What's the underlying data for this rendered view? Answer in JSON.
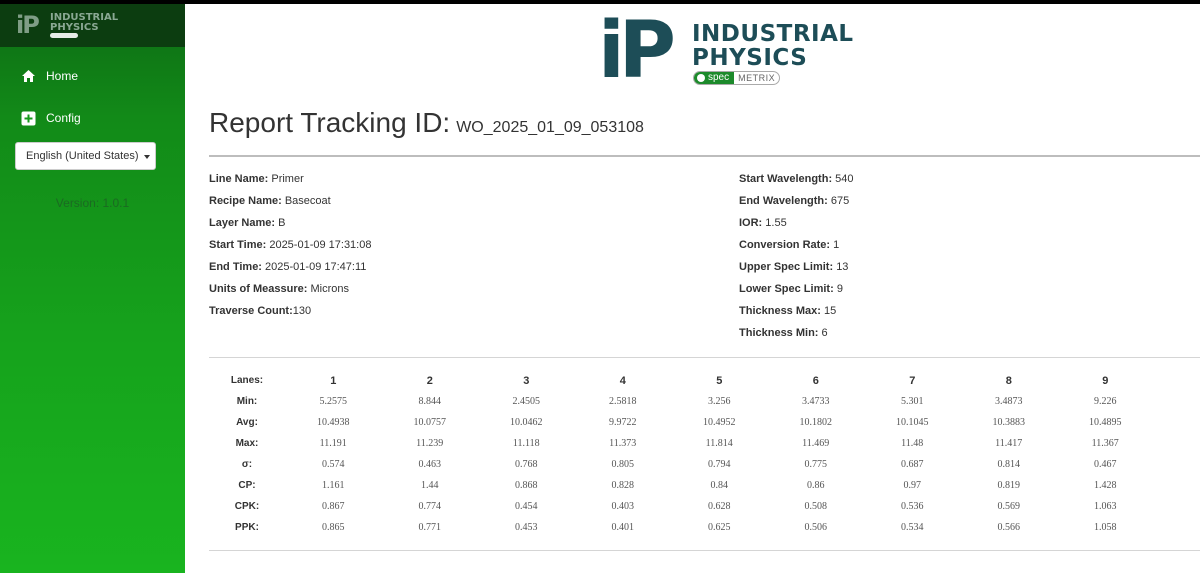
{
  "sidebar": {
    "logo_mark": "iP",
    "logo_line1": "INDUSTRIAL",
    "logo_line2": "PHYSICS",
    "nav": [
      {
        "label": "Home",
        "icon": "home-icon"
      },
      {
        "label": "Config",
        "icon": "plus-square-icon"
      }
    ],
    "language": "English (United States)",
    "version": "Version: 1.0.1"
  },
  "brand": {
    "mark": "iP",
    "line1": "INDUSTRIAL",
    "line2": "PHYSICS",
    "spec_a": "spec",
    "spec_b": "METRIX"
  },
  "report": {
    "title_label": "Report Tracking ID:",
    "tracking_id": "WO_2025_01_09_053108"
  },
  "info_left": [
    {
      "label": "Line Name:",
      "value": "Primer"
    },
    {
      "label": "Recipe Name:",
      "value": "Basecoat"
    },
    {
      "label": "Layer Name:",
      "value": "B"
    },
    {
      "label": "Start Time:",
      "value": "2025-01-09 17:31:08"
    },
    {
      "label": "End Time:",
      "value": "2025-01-09 17:47:11"
    },
    {
      "label": "Units of Meassure:",
      "value": "Microns"
    },
    {
      "label": "Traverse Count:",
      "value": "130"
    }
  ],
  "info_right": [
    {
      "label": "Start Wavelength:",
      "value": "540"
    },
    {
      "label": "End Wavelength:",
      "value": "675"
    },
    {
      "label": "IOR:",
      "value": "1.55"
    },
    {
      "label": "Conversion Rate:",
      "value": "1"
    },
    {
      "label": "Upper Spec Limit:",
      "value": "13"
    },
    {
      "label": "Lower Spec Limit:",
      "value": "9"
    },
    {
      "label": "Thickness Max:",
      "value": "15"
    },
    {
      "label": "Thickness Min:",
      "value": "6"
    }
  ],
  "stats": {
    "lanes_label": "Lanes:",
    "lanes": [
      "1",
      "2",
      "3",
      "4",
      "5",
      "6",
      "7",
      "8",
      "9"
    ],
    "rows": [
      {
        "label": "Min:",
        "values": [
          "5.2575",
          "8.844",
          "2.4505",
          "2.5818",
          "3.256",
          "3.4733",
          "5.301",
          "3.4873",
          "9.226"
        ]
      },
      {
        "label": "Avg:",
        "values": [
          "10.4938",
          "10.0757",
          "10.0462",
          "9.9722",
          "10.4952",
          "10.1802",
          "10.1045",
          "10.3883",
          "10.4895"
        ]
      },
      {
        "label": "Max:",
        "values": [
          "11.191",
          "11.239",
          "11.118",
          "11.373",
          "11.814",
          "11.469",
          "11.48",
          "11.417",
          "11.367"
        ]
      },
      {
        "label": "σ:",
        "values": [
          "0.574",
          "0.463",
          "0.768",
          "0.805",
          "0.794",
          "0.775",
          "0.687",
          "0.814",
          "0.467"
        ]
      },
      {
        "label": "CP:",
        "values": [
          "1.161",
          "1.44",
          "0.868",
          "0.828",
          "0.84",
          "0.86",
          "0.97",
          "0.819",
          "1.428"
        ]
      },
      {
        "label": "CPK:",
        "values": [
          "0.867",
          "0.774",
          "0.454",
          "0.403",
          "0.628",
          "0.508",
          "0.536",
          "0.569",
          "1.063"
        ]
      },
      {
        "label": "PPK:",
        "values": [
          "0.865",
          "0.771",
          "0.453",
          "0.401",
          "0.625",
          "0.506",
          "0.534",
          "0.566",
          "1.058"
        ]
      }
    ]
  }
}
